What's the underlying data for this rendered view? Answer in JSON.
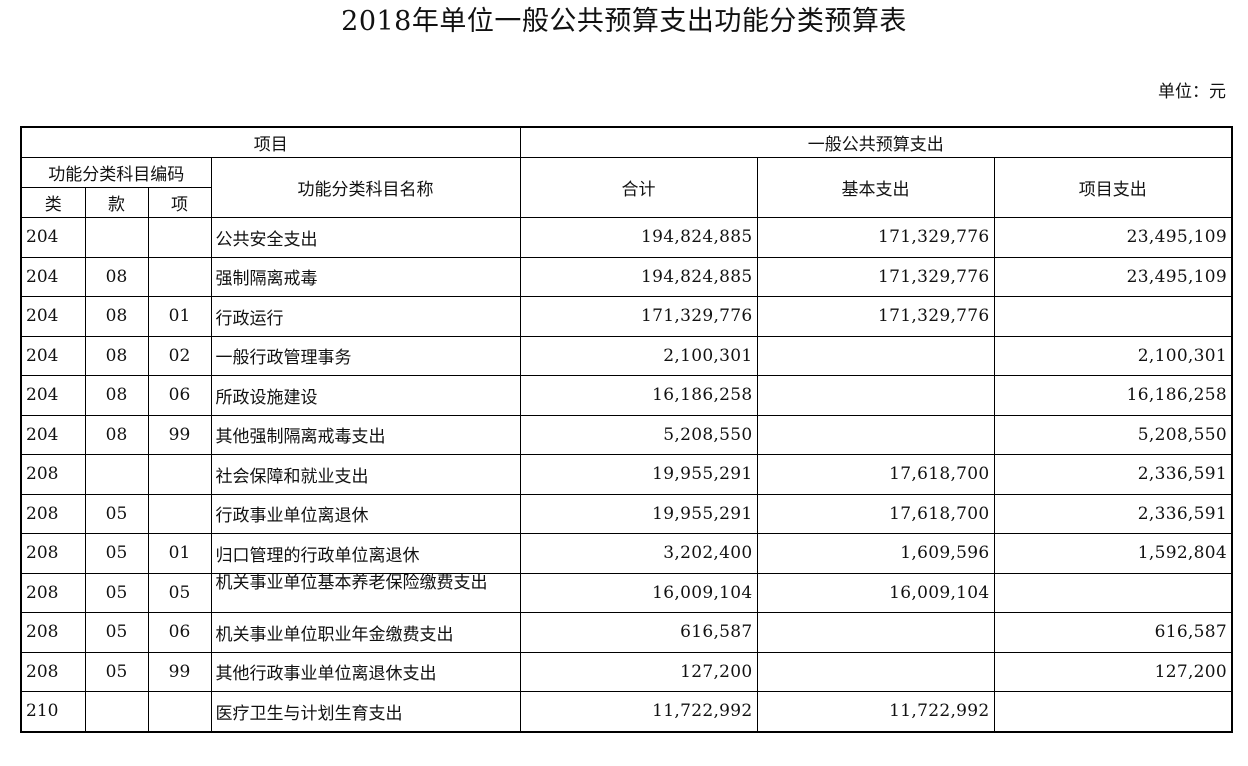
{
  "document": {
    "title": "2018年单位一般公共预算支出功能分类预算表",
    "unit": "单位：元"
  },
  "table": {
    "header": {
      "project": "项目",
      "general_budget": "一般公共预算支出",
      "code_group": "功能分类科目编码",
      "name": "功能分类科目名称",
      "total": "合计",
      "basic": "基本支出",
      "project_exp": "项目支出",
      "lei": "类",
      "kuan": "款",
      "xiang": "项"
    },
    "rows": [
      {
        "lei": "204",
        "kuan": "",
        "xiang": "",
        "name": "公共安全支出",
        "total": "194,824,885",
        "basic": "171,329,776",
        "project": "23,495,109"
      },
      {
        "lei": "204",
        "kuan": "08",
        "xiang": "",
        "name": "强制隔离戒毒",
        "total": "194,824,885",
        "basic": "171,329,776",
        "project": "23,495,109"
      },
      {
        "lei": "204",
        "kuan": "08",
        "xiang": "01",
        "name": "行政运行",
        "total": "171,329,776",
        "basic": "171,329,776",
        "project": ""
      },
      {
        "lei": "204",
        "kuan": "08",
        "xiang": "02",
        "name": "一般行政管理事务",
        "total": "2,100,301",
        "basic": "",
        "project": "2,100,301"
      },
      {
        "lei": "204",
        "kuan": "08",
        "xiang": "06",
        "name": "所政设施建设",
        "total": "16,186,258",
        "basic": "",
        "project": "16,186,258"
      },
      {
        "lei": "204",
        "kuan": "08",
        "xiang": "99",
        "name": "其他强制隔离戒毒支出",
        "total": "5,208,550",
        "basic": "",
        "project": "5,208,550"
      },
      {
        "lei": "208",
        "kuan": "",
        "xiang": "",
        "name": "社会保障和就业支出",
        "total": "19,955,291",
        "basic": "17,618,700",
        "project": "2,336,591"
      },
      {
        "lei": "208",
        "kuan": "05",
        "xiang": "",
        "name": "行政事业单位离退休",
        "total": "19,955,291",
        "basic": "17,618,700",
        "project": "2,336,591"
      },
      {
        "lei": "208",
        "kuan": "05",
        "xiang": "01",
        "name": "归口管理的行政单位离退休",
        "total": "3,202,400",
        "basic": "1,609,596",
        "project": "1,592,804"
      },
      {
        "lei": "208",
        "kuan": "05",
        "xiang": "05",
        "name": "机关事业单位基本养老保险缴费支出",
        "total": "16,009,104",
        "basic": "16,009,104",
        "project": ""
      },
      {
        "lei": "208",
        "kuan": "05",
        "xiang": "06",
        "name": "机关事业单位职业年金缴费支出",
        "total": "616,587",
        "basic": "",
        "project": "616,587"
      },
      {
        "lei": "208",
        "kuan": "05",
        "xiang": "99",
        "name": "其他行政事业单位离退休支出",
        "total": "127,200",
        "basic": "",
        "project": "127,200"
      },
      {
        "lei": "210",
        "kuan": "",
        "xiang": "",
        "name": "医疗卫生与计划生育支出",
        "total": "11,722,992",
        "basic": "11,722,992",
        "project": ""
      }
    ]
  }
}
